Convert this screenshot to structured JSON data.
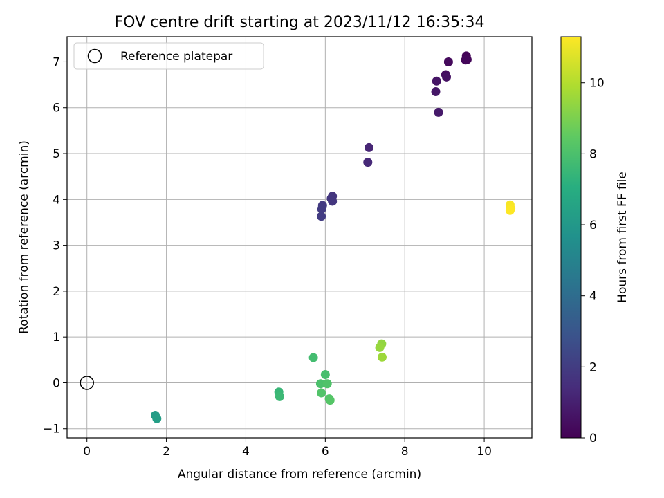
{
  "chart_data": {
    "type": "scatter",
    "title": "FOV centre drift starting at 2023/11/12 16:35:34",
    "xlabel": "Angular distance from reference (arcmin)",
    "ylabel": "Rotation from reference (arcmin)",
    "xlim": [
      -0.5,
      11.2
    ],
    "ylim": [
      -1.2,
      7.55
    ],
    "xticks": [
      0,
      2,
      4,
      6,
      8,
      10
    ],
    "yticks": [
      -1,
      0,
      1,
      2,
      3,
      4,
      5,
      6,
      7
    ],
    "grid": true,
    "colorbar": {
      "label": "Hours from first FF file",
      "range": [
        0,
        11.3
      ],
      "ticks": [
        0,
        2,
        4,
        6,
        8,
        10
      ],
      "colormap": "viridis"
    },
    "legend": {
      "placement": "top-left",
      "entries": [
        "Reference platepar"
      ]
    },
    "reference_point": {
      "x": 0,
      "y": 0
    },
    "points": [
      {
        "x": 9.55,
        "y": 7.13,
        "h": 0.1
      },
      {
        "x": 9.57,
        "y": 7.05,
        "h": 0.15
      },
      {
        "x": 9.53,
        "y": 7.04,
        "h": 0.2
      },
      {
        "x": 9.1,
        "y": 7.0,
        "h": 0.3
      },
      {
        "x": 9.03,
        "y": 6.72,
        "h": 0.4
      },
      {
        "x": 9.05,
        "y": 6.67,
        "h": 0.5
      },
      {
        "x": 8.8,
        "y": 6.58,
        "h": 0.6
      },
      {
        "x": 8.78,
        "y": 6.35,
        "h": 0.7
      },
      {
        "x": 8.85,
        "y": 5.9,
        "h": 0.8
      },
      {
        "x": 7.1,
        "y": 5.13,
        "h": 1.2
      },
      {
        "x": 7.07,
        "y": 4.81,
        "h": 1.3
      },
      {
        "x": 6.18,
        "y": 4.07,
        "h": 1.7
      },
      {
        "x": 6.15,
        "y": 4.02,
        "h": 1.75
      },
      {
        "x": 6.18,
        "y": 3.96,
        "h": 1.8
      },
      {
        "x": 5.93,
        "y": 3.87,
        "h": 1.9
      },
      {
        "x": 5.91,
        "y": 3.79,
        "h": 1.95
      },
      {
        "x": 5.9,
        "y": 3.63,
        "h": 2.0
      },
      {
        "x": 1.72,
        "y": -0.71,
        "h": 6.2
      },
      {
        "x": 1.76,
        "y": -0.78,
        "h": 6.3
      },
      {
        "x": 4.83,
        "y": -0.2,
        "h": 7.5
      },
      {
        "x": 4.85,
        "y": -0.3,
        "h": 7.6
      },
      {
        "x": 5.7,
        "y": 0.55,
        "h": 7.8
      },
      {
        "x": 6.0,
        "y": 0.18,
        "h": 7.9
      },
      {
        "x": 5.88,
        "y": -0.02,
        "h": 8.0
      },
      {
        "x": 6.05,
        "y": -0.02,
        "h": 8.1
      },
      {
        "x": 5.9,
        "y": -0.22,
        "h": 8.15
      },
      {
        "x": 6.1,
        "y": -0.35,
        "h": 8.2
      },
      {
        "x": 6.12,
        "y": -0.38,
        "h": 8.25
      },
      {
        "x": 7.42,
        "y": 0.85,
        "h": 9.4
      },
      {
        "x": 7.37,
        "y": 0.77,
        "h": 9.5
      },
      {
        "x": 7.43,
        "y": 0.56,
        "h": 9.6
      },
      {
        "x": 10.65,
        "y": 3.88,
        "h": 11.2
      },
      {
        "x": 10.67,
        "y": 3.8,
        "h": 11.25
      },
      {
        "x": 10.65,
        "y": 3.76,
        "h": 11.3
      }
    ]
  }
}
